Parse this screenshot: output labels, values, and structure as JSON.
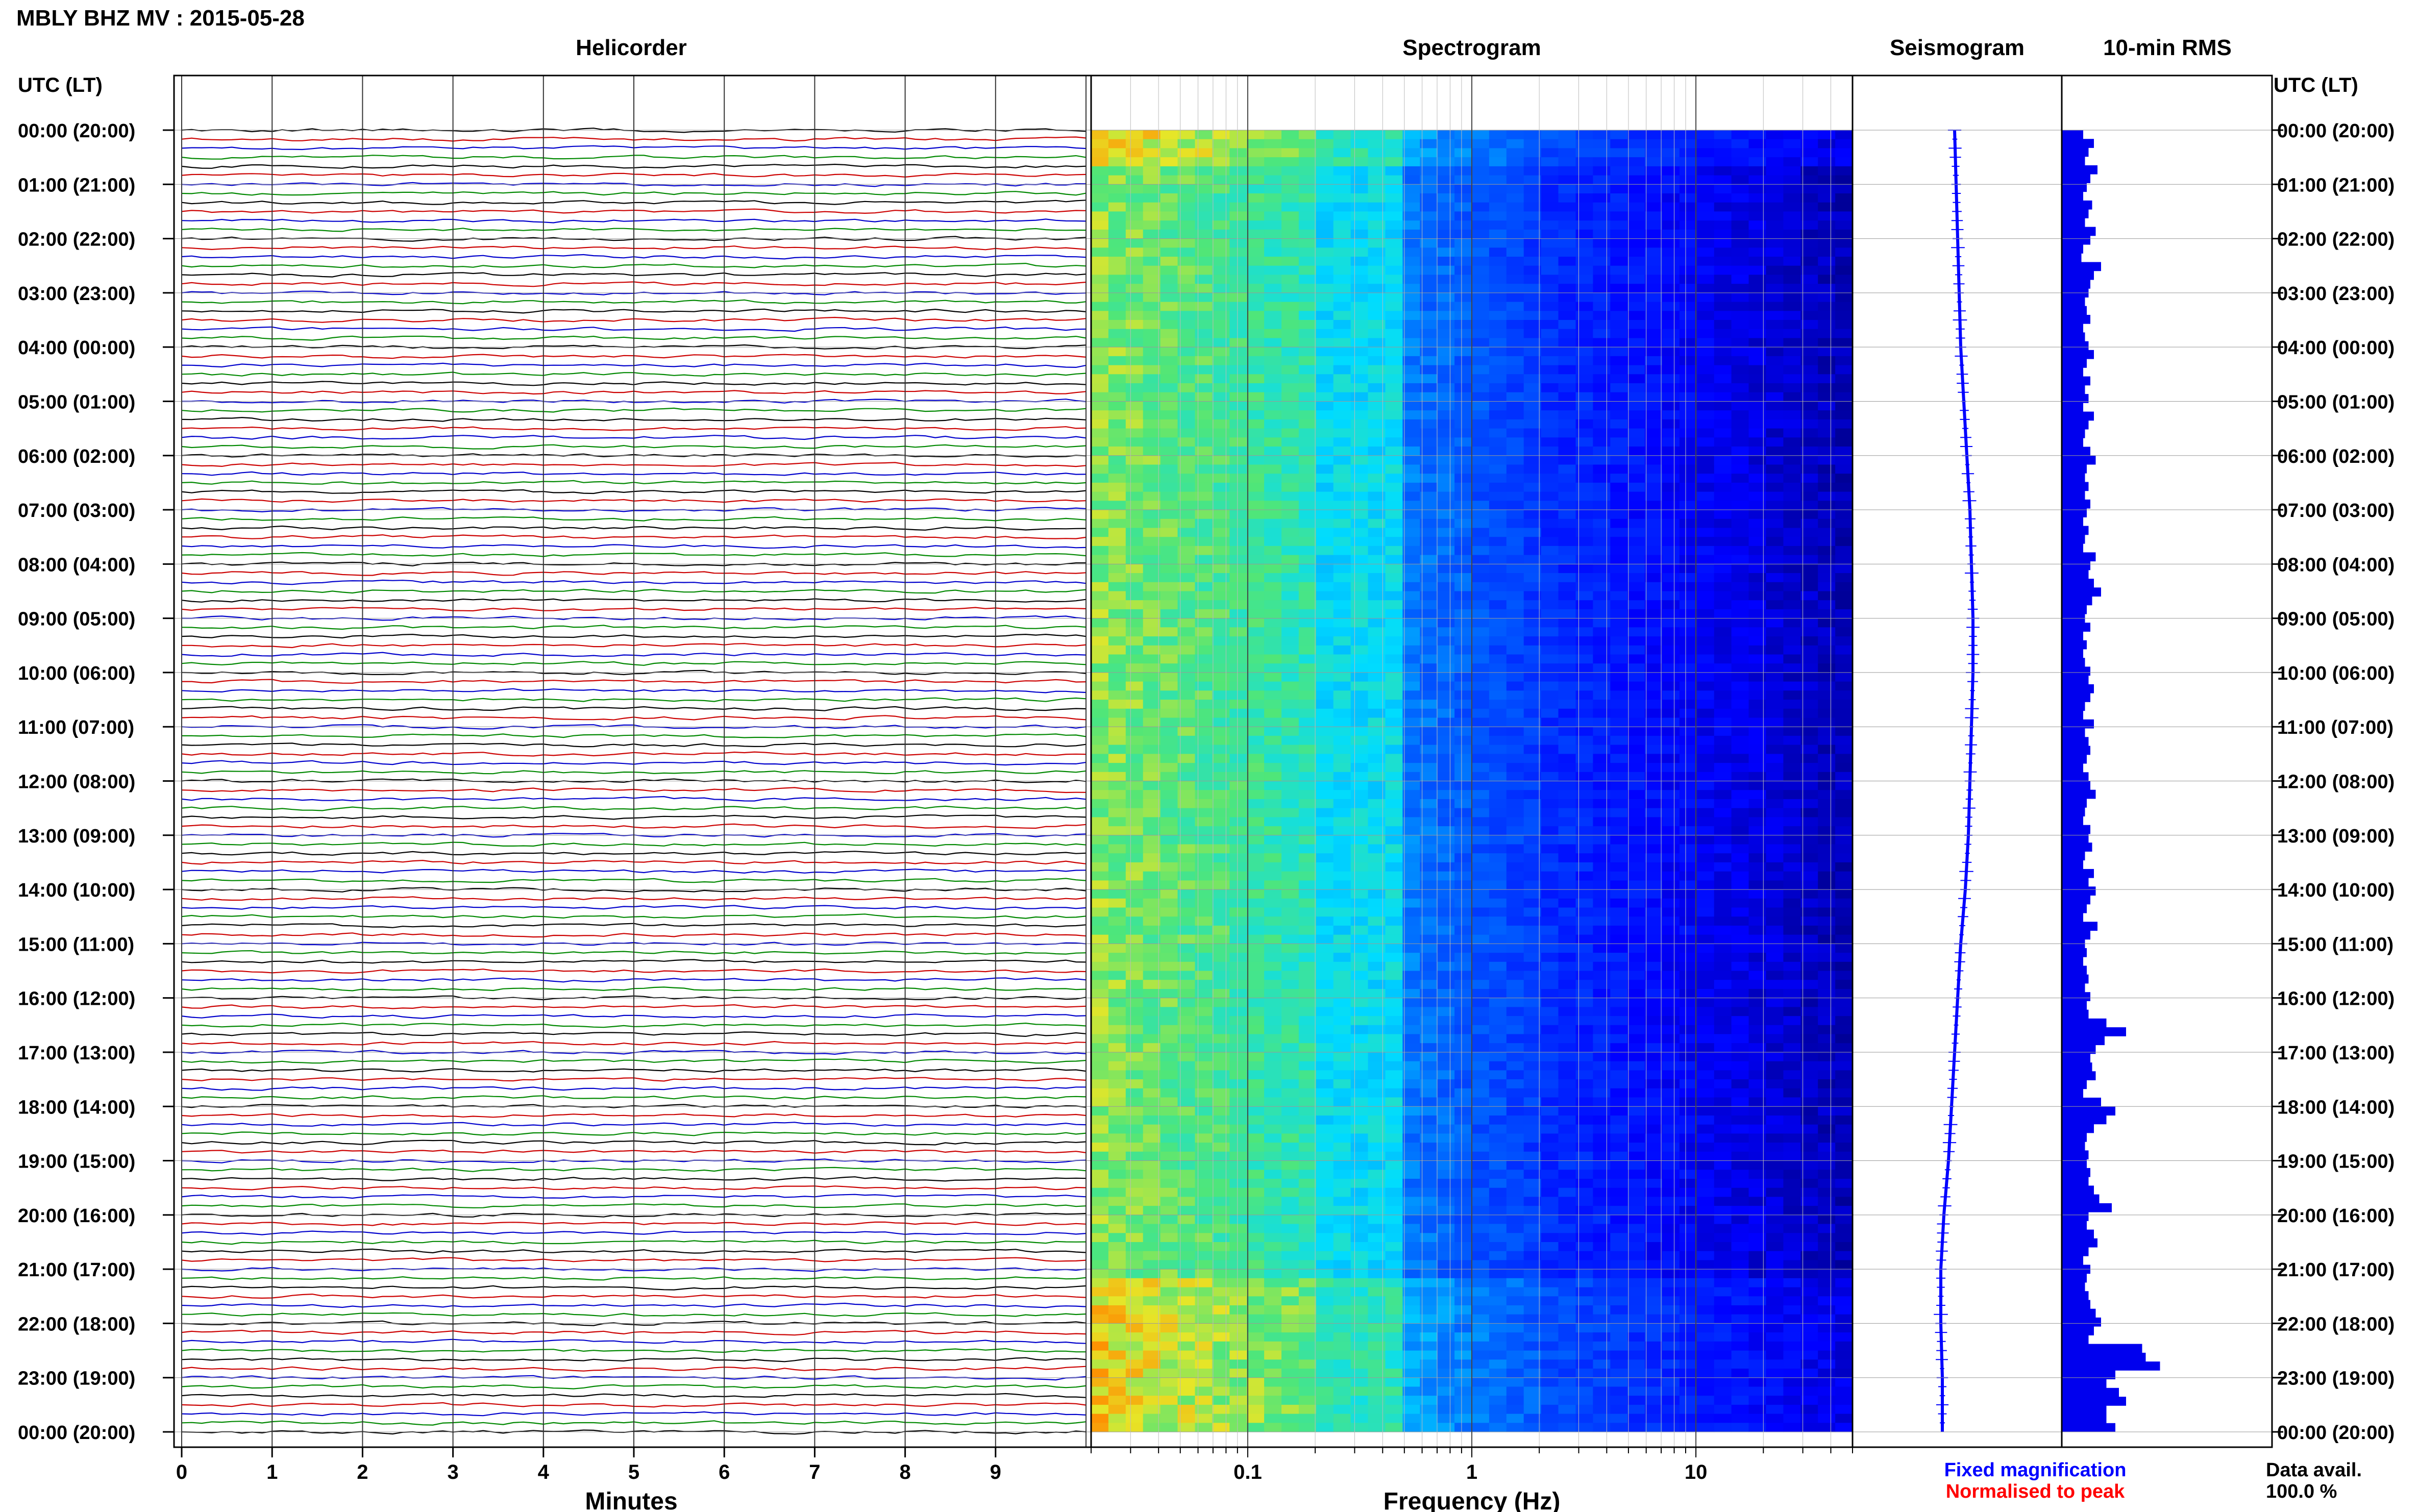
{
  "chart_data": {
    "type": "heatmap",
    "title": "MBLY BHZ MV : 2015-05-28",
    "panels": {
      "helicorder": {
        "title": "Helicorder",
        "xlabel": "Minutes",
        "xticks": [
          "0",
          "1",
          "2",
          "3",
          "4",
          "5",
          "6",
          "7",
          "8",
          "9"
        ],
        "xlim": [
          0,
          10
        ]
      },
      "spectrogram": {
        "title": "Spectrogram",
        "xlabel": "Frequency (Hz)",
        "xscale": "log",
        "xticks": [
          "0.1",
          "1",
          "10"
        ],
        "xlim": [
          0.02,
          50
        ]
      },
      "seismogram": {
        "title": "Seismogram"
      },
      "rms": {
        "title": "10-min RMS"
      }
    },
    "time_axis_label": "UTC (LT)",
    "time_labels": [
      "00:00 (20:00)",
      "01:00 (21:00)",
      "02:00 (22:00)",
      "03:00 (23:00)",
      "04:00 (00:00)",
      "05:00 (01:00)",
      "06:00 (02:00)",
      "07:00 (03:00)",
      "08:00 (04:00)",
      "09:00 (05:00)",
      "10:00 (06:00)",
      "11:00 (07:00)",
      "12:00 (08:00)",
      "13:00 (09:00)",
      "14:00 (10:00)",
      "15:00 (11:00)",
      "16:00 (12:00)",
      "17:00 (13:00)",
      "18:00 (14:00)",
      "19:00 (15:00)",
      "20:00 (16:00)",
      "21:00 (17:00)",
      "22:00 (18:00)",
      "23:00 (19:00)",
      "00:00 (20:00)"
    ],
    "trace_colors": [
      "#000000",
      "#cc0000",
      "#0000cc",
      "#008800"
    ],
    "seismogram_offset": [
      0.0,
      0.05,
      0.1,
      0.15,
      0.2,
      0.3,
      0.4,
      0.5,
      0.55,
      0.6,
      0.6,
      0.55,
      0.5,
      0.45,
      0.35,
      0.2,
      0.1,
      0.0,
      -0.1,
      -0.2,
      -0.35,
      -0.45,
      -0.45,
      -0.4,
      -0.4
    ],
    "rms_values": [
      1.2,
      1.8,
      1.5,
      1.3,
      2.0,
      1.6,
      1.4,
      1.2,
      1.7,
      1.5,
      1.3,
      1.9,
      1.6,
      1.2,
      1.1,
      2.2,
      1.8,
      1.6,
      1.5,
      1.3,
      1.4,
      1.6,
      1.2,
      1.3,
      1.5,
      1.8,
      1.4,
      1.2,
      1.6,
      1.3,
      1.5,
      1.2,
      1.8,
      1.5,
      1.3,
      1.2,
      1.6,
      1.9,
      1.4,
      1.3,
      1.5,
      1.3,
      1.6,
      1.4,
      1.2,
      1.5,
      1.3,
      1.2,
      1.9,
      1.6,
      1.5,
      1.8,
      2.2,
      1.7,
      1.4,
      1.3,
      1.6,
      1.2,
      1.4,
      1.2,
      1.3,
      1.6,
      1.5,
      1.8,
      1.6,
      1.3,
      1.2,
      1.8,
      1.3,
      1.5,
      1.6,
      1.4,
      1.2,
      1.5,
      1.6,
      1.9,
      1.4,
      1.3,
      1.2,
      1.6,
      1.5,
      1.7,
      1.3,
      1.2,
      1.8,
      1.5,
      1.9,
      1.6,
      1.4,
      1.2,
      2.0,
      1.6,
      1.3,
      1.4,
      1.2,
      1.4,
      1.5,
      1.3,
      1.6,
      1.4,
      1.5,
      2.5,
      3.6,
      2.4,
      1.9,
      1.6,
      1.7,
      1.9,
      1.4,
      1.2,
      2.2,
      3.0,
      2.5,
      1.8,
      1.4,
      1.3,
      1.5,
      1.4,
      1.6,
      1.5,
      1.8,
      2.1,
      2.8,
      1.5,
      1.4,
      1.8,
      2.0,
      1.5,
      1.2,
      1.6,
      1.4,
      1.3,
      1.5,
      1.6,
      1.9,
      2.2,
      1.8,
      1.5,
      4.5,
      4.7,
      5.5,
      3.0,
      2.5,
      3.2,
      3.6,
      2.5,
      2.5,
      3.0
    ],
    "legend": {
      "fixed": "Fixed magnification",
      "normalised": "Normalised to peak",
      "fixed_color": "#0000ff",
      "normalised_color": "#ff0000"
    },
    "availability": {
      "label": "Data avail.",
      "value": "100.0 %"
    }
  }
}
